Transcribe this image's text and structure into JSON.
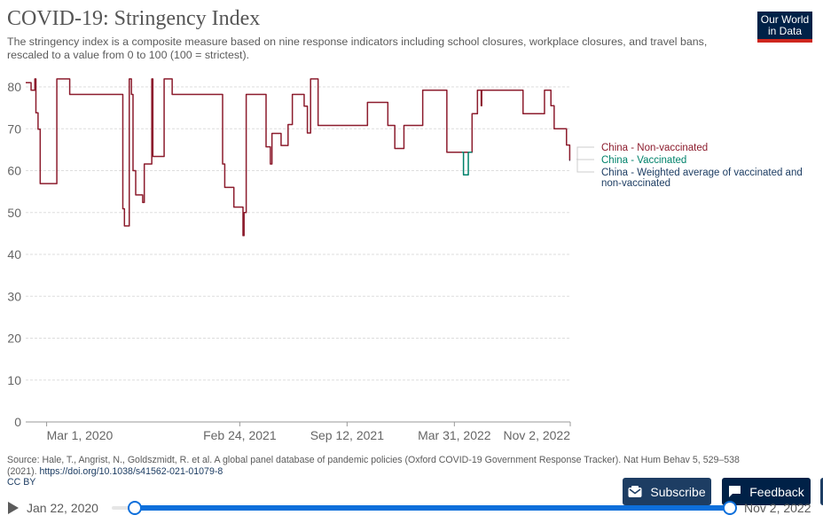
{
  "header": {
    "title": "COVID-19: Stringency Index",
    "subtitle": "The stringency index is a composite measure based on nine response indicators including school closures, workplace closures, and travel bans, rescaled to a value from 0 to 100 (100 = strictest).",
    "logo_line1": "Our World",
    "logo_line2": "in Data"
  },
  "colors": {
    "non_vaccinated": "#8c1c2d",
    "vaccinated": "#00826b",
    "weighted": "#1d3d63",
    "slider": "#0d6fdb"
  },
  "chart_data": {
    "type": "line",
    "title": "COVID-19: Stringency Index",
    "xlabel": "",
    "ylabel": "",
    "ylim": [
      0,
      80
    ],
    "yticks": [
      0,
      10,
      20,
      30,
      40,
      50,
      60,
      70,
      80
    ],
    "xlim": [
      "2020-01-22",
      "2022-11-02"
    ],
    "xticks": [
      {
        "date": "2020-03-01",
        "label": "Mar 1, 2020"
      },
      {
        "date": "2021-02-24",
        "label": "Feb 24, 2021"
      },
      {
        "date": "2021-09-12",
        "label": "Sep 12, 2021"
      },
      {
        "date": "2022-03-31",
        "label": "Mar 31, 2022"
      },
      {
        "date": "2022-11-02",
        "label": "Nov 2, 2022"
      }
    ],
    "grid": true,
    "legend_position": "right",
    "series": [
      {
        "name": "China - Non-vaccinated",
        "color_key": "non_vaccinated",
        "points": [
          [
            "2020-01-22",
            81.0
          ],
          [
            "2020-02-01",
            81.0
          ],
          [
            "2020-02-01",
            79.2
          ],
          [
            "2020-02-08",
            79.2
          ],
          [
            "2020-02-08",
            81.9
          ],
          [
            "2020-02-10",
            81.9
          ],
          [
            "2020-02-10",
            73.8
          ],
          [
            "2020-02-14",
            73.8
          ],
          [
            "2020-02-14",
            69.9
          ],
          [
            "2020-02-18",
            69.9
          ],
          [
            "2020-02-18",
            56.9
          ],
          [
            "2020-03-20",
            56.9
          ],
          [
            "2020-03-20",
            81.9
          ],
          [
            "2020-04-13",
            81.9
          ],
          [
            "2020-04-13",
            78.2
          ],
          [
            "2020-07-21",
            78.2
          ],
          [
            "2020-07-21",
            50.9
          ],
          [
            "2020-07-24",
            50.9
          ],
          [
            "2020-07-24",
            46.8
          ],
          [
            "2020-08-02",
            46.8
          ],
          [
            "2020-08-02",
            81.9
          ],
          [
            "2020-08-06",
            81.9
          ],
          [
            "2020-08-06",
            78.2
          ],
          [
            "2020-08-09",
            78.2
          ],
          [
            "2020-08-09",
            60.0
          ],
          [
            "2020-08-14",
            60.0
          ],
          [
            "2020-08-14",
            54.2
          ],
          [
            "2020-08-27",
            54.2
          ],
          [
            "2020-08-27",
            52.4
          ],
          [
            "2020-08-30",
            52.4
          ],
          [
            "2020-08-30",
            61.6
          ],
          [
            "2020-09-13",
            61.6
          ],
          [
            "2020-09-13",
            81.9
          ],
          [
            "2020-09-15",
            81.9
          ],
          [
            "2020-09-15",
            63.4
          ],
          [
            "2020-10-06",
            63.4
          ],
          [
            "2020-10-06",
            81.9
          ],
          [
            "2020-10-21",
            81.9
          ],
          [
            "2020-10-21",
            78.2
          ],
          [
            "2021-01-23",
            78.2
          ],
          [
            "2021-01-23",
            61.6
          ],
          [
            "2021-01-27",
            61.6
          ],
          [
            "2021-01-27",
            56.0
          ],
          [
            "2021-02-13",
            56.0
          ],
          [
            "2021-02-13",
            51.3
          ],
          [
            "2021-03-02",
            51.3
          ],
          [
            "2021-03-02",
            44.5
          ],
          [
            "2021-03-04",
            44.5
          ],
          [
            "2021-03-04",
            50.0
          ],
          [
            "2021-03-08",
            50.0
          ],
          [
            "2021-03-08",
            78.2
          ],
          [
            "2021-04-14",
            78.2
          ],
          [
            "2021-04-14",
            65.7
          ],
          [
            "2021-04-22",
            65.7
          ],
          [
            "2021-04-22",
            61.6
          ],
          [
            "2021-04-25",
            61.6
          ],
          [
            "2021-04-25",
            68.9
          ],
          [
            "2021-05-12",
            68.9
          ],
          [
            "2021-05-12",
            66.0
          ],
          [
            "2021-05-25",
            66.0
          ],
          [
            "2021-05-25",
            71.0
          ],
          [
            "2021-06-02",
            71.0
          ],
          [
            "2021-06-02",
            78.2
          ],
          [
            "2021-06-24",
            78.2
          ],
          [
            "2021-06-24",
            75.4
          ],
          [
            "2021-06-30",
            75.4
          ],
          [
            "2021-06-30",
            69.0
          ],
          [
            "2021-07-06",
            69.0
          ],
          [
            "2021-07-06",
            81.9
          ],
          [
            "2021-07-20",
            81.9
          ],
          [
            "2021-07-20",
            70.8
          ],
          [
            "2021-10-20",
            70.8
          ],
          [
            "2021-10-20",
            76.3
          ],
          [
            "2021-11-27",
            76.3
          ],
          [
            "2021-11-27",
            70.8
          ],
          [
            "2021-12-10",
            70.8
          ],
          [
            "2021-12-10",
            65.3
          ],
          [
            "2021-12-27",
            65.3
          ],
          [
            "2021-12-27",
            70.8
          ],
          [
            "2022-01-31",
            70.8
          ],
          [
            "2022-01-31",
            79.2
          ],
          [
            "2022-03-17",
            79.2
          ],
          [
            "2022-03-17",
            64.4
          ],
          [
            "2022-04-14",
            64.4
          ],
          [
            "2022-04-14",
            64.4
          ],
          [
            "2022-05-03",
            64.4
          ],
          [
            "2022-05-03",
            73.6
          ],
          [
            "2022-05-13",
            73.6
          ],
          [
            "2022-05-13",
            79.2
          ],
          [
            "2022-05-20",
            79.2
          ],
          [
            "2022-05-20",
            75.5
          ],
          [
            "2022-05-21",
            75.5
          ],
          [
            "2022-05-21",
            79.2
          ],
          [
            "2022-08-06",
            79.2
          ],
          [
            "2022-08-06",
            73.6
          ],
          [
            "2022-09-15",
            73.6
          ],
          [
            "2022-09-15",
            79.2
          ],
          [
            "2022-09-27",
            79.2
          ],
          [
            "2022-09-27",
            75.5
          ],
          [
            "2022-10-03",
            75.5
          ],
          [
            "2022-10-03",
            70.0
          ],
          [
            "2022-10-26",
            70.0
          ],
          [
            "2022-10-26",
            66.1
          ],
          [
            "2022-11-01",
            66.1
          ],
          [
            "2022-11-01",
            62.5
          ],
          [
            "2022-11-02",
            62.5
          ]
        ]
      },
      {
        "name": "China - Vaccinated",
        "color_key": "vaccinated",
        "points": [
          [
            "2022-04-14",
            64.4
          ],
          [
            "2022-04-17",
            64.4
          ],
          [
            "2022-04-17",
            59.0
          ],
          [
            "2022-04-26",
            59.0
          ],
          [
            "2022-04-26",
            64.4
          ],
          [
            "2022-05-03",
            64.4
          ]
        ]
      },
      {
        "name": "China - Weighted average of vaccinated and non-vaccinated",
        "color_key": "weighted",
        "points": [
          [
            "2022-11-01",
            62.5
          ],
          [
            "2022-11-02",
            62.5
          ]
        ]
      }
    ],
    "legend_label_lines": [
      [
        "China - Non-vaccinated"
      ],
      [
        "China - Vaccinated"
      ],
      [
        "China - Weighted average of vaccinated and",
        "non-vaccinated"
      ]
    ]
  },
  "source": {
    "text": "Source: Hale, T., Angrist, N., Goldszmidt, R. et al. A global panel database of pandemic policies (Oxford COVID-19 Government Response Tracker). Nat Hum Behav 5, 529–538 (2021). ",
    "link": "https://doi.org/10.1038/s41562-021-01079-8",
    "license": "CC BY"
  },
  "buttons": {
    "subscribe": "Subscribe",
    "feedback": "Feedback"
  },
  "timeline": {
    "start_label": "Jan 22, 2020",
    "end_label": "Nov 2, 2022"
  }
}
